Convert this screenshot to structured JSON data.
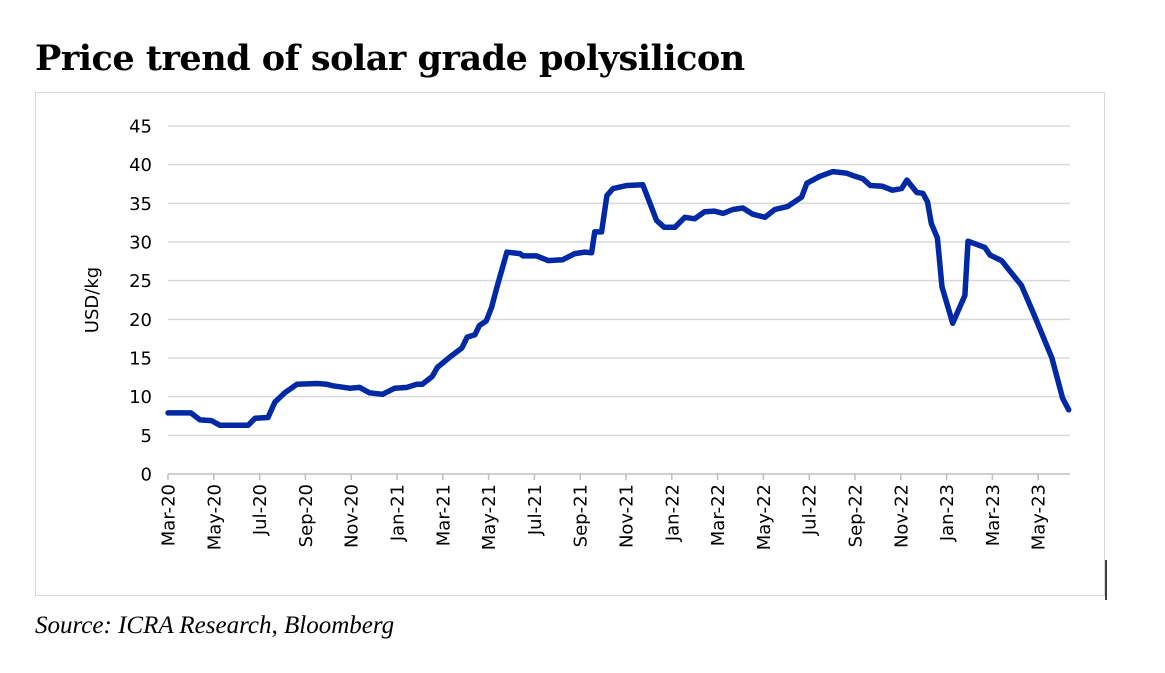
{
  "chart_data": {
    "type": "line",
    "title": "Price trend of solar grade polysilicon",
    "source": "Source: ICRA Research, Bloomberg",
    "ylabel": "USD/kg",
    "xlabel": "",
    "ylim": [
      0,
      45
    ],
    "yticks": [
      "0",
      "5",
      "10",
      "15",
      "20",
      "25",
      "30",
      "35",
      "40",
      "45"
    ],
    "xticks": [
      "Mar-20",
      "May-20",
      "Jul-20",
      "Sep-20",
      "Nov-20",
      "Jan-21",
      "Mar-21",
      "May-21",
      "Jul-21",
      "Sep-21",
      "Nov-21",
      "Jan-22",
      "Mar-22",
      "May-22",
      "Jul-22",
      "Sep-22",
      "Nov-22",
      "Jan-23",
      "Mar-23",
      "May-23"
    ],
    "grid": true,
    "color": "#0029a3",
    "series": [
      {
        "x": [
          "2020-03-01",
          "2020-04-01",
          "2020-04-13",
          "2020-04-28",
          "2020-05-09",
          "2020-06-16",
          "2020-06-25",
          "2020-07-12",
          "2020-07-21",
          "2020-08-04",
          "2020-08-20",
          "2020-09-16",
          "2020-09-29",
          "2020-10-07",
          "2020-10-29",
          "2020-11-12",
          "2020-11-25",
          "2020-12-12",
          "2020-12-28",
          "2021-01-14",
          "2021-01-27",
          "2021-02-04",
          "2021-02-17",
          "2021-02-24",
          "2021-03-10",
          "2021-03-26",
          "2021-04-03",
          "2021-04-13",
          "2021-04-19",
          "2021-04-28",
          "2021-05-05",
          "2021-05-12",
          "2021-05-25",
          "2021-06-12",
          "2021-06-16",
          "2021-07-04",
          "2021-07-19",
          "2021-08-08",
          "2021-08-24",
          "2021-09-07",
          "2021-09-16",
          "2021-09-20",
          "2021-09-29",
          "2021-10-06",
          "2021-10-14",
          "2021-11-02",
          "2021-11-23",
          "2021-12-11",
          "2021-12-21",
          "2022-01-05",
          "2022-01-18",
          "2022-02-01",
          "2022-02-14",
          "2022-02-27",
          "2022-03-08",
          "2022-03-21",
          "2022-04-04",
          "2022-04-17",
          "2022-05-03",
          "2022-05-16",
          "2022-06-03",
          "2022-06-21",
          "2022-06-28",
          "2022-07-15",
          "2022-08-02",
          "2022-08-20",
          "2022-09-01",
          "2022-09-11",
          "2022-09-21",
          "2022-10-07",
          "2022-10-20",
          "2022-11-02",
          "2022-11-09",
          "2022-11-22",
          "2022-11-30",
          "2022-12-06",
          "2022-12-11",
          "2022-12-19",
          "2022-12-25",
          "2023-01-09",
          "2023-01-25",
          "2023-01-29",
          "2023-02-21",
          "2023-02-28",
          "2023-03-13",
          "2023-03-21",
          "2023-04-09",
          "2023-04-26",
          "2023-05-19",
          "2023-06-03",
          "2023-06-11"
        ],
        "y": [
          7.9,
          7.9,
          7.0,
          6.9,
          6.3,
          6.3,
          7.2,
          7.3,
          9.3,
          10.5,
          11.6,
          11.7,
          11.6,
          11.4,
          11.1,
          11.2,
          10.5,
          10.3,
          11.1,
          11.2,
          11.6,
          11.6,
          12.6,
          13.8,
          15.1,
          16.3,
          17.7,
          18.0,
          19.2,
          19.8,
          21.6,
          24.2,
          28.7,
          28.5,
          28.2,
          28.2,
          27.6,
          27.7,
          28.5,
          28.7,
          28.6,
          31.3,
          31.3,
          36.0,
          36.9,
          37.3,
          37.4,
          32.8,
          31.9,
          31.9,
          33.2,
          33.0,
          33.9,
          34.0,
          33.7,
          34.2,
          34.4,
          33.6,
          33.2,
          34.2,
          34.6,
          35.8,
          37.6,
          38.5,
          39.1,
          38.9,
          38.5,
          38.2,
          37.3,
          37.2,
          36.7,
          36.9,
          38.0,
          36.4,
          36.3,
          35.2,
          32.4,
          30.5,
          24.2,
          19.5,
          23.1,
          30.1,
          29.3,
          28.3,
          27.6,
          26.6,
          24.4,
          20.5,
          15.0,
          9.8,
          8.3
        ]
      }
    ]
  }
}
